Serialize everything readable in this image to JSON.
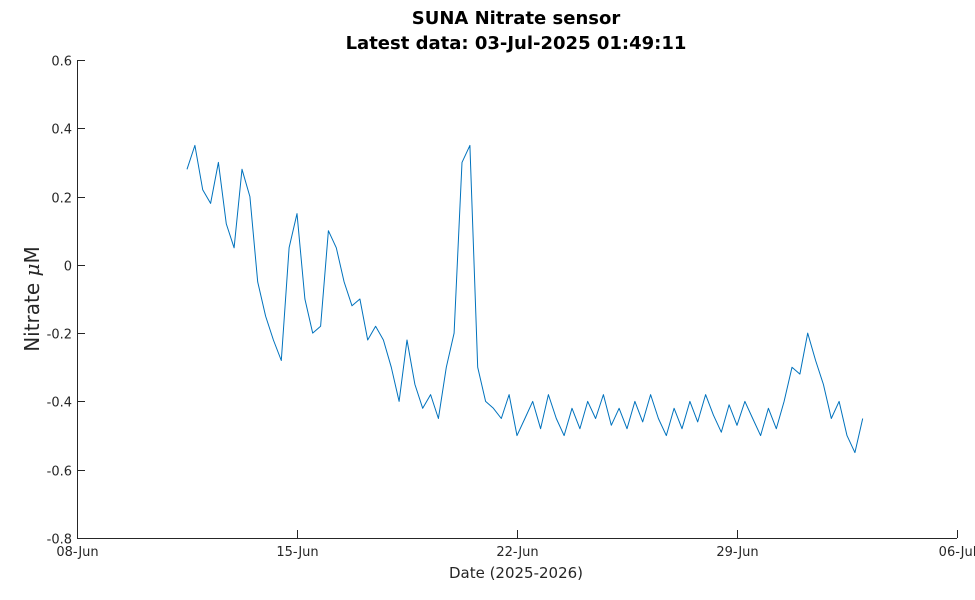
{
  "chart_data": {
    "type": "line",
    "title": "SUNA Nitrate sensor",
    "subtitle": "Latest data: 03-Jul-2025 01:49:11",
    "xlabel": "Date (2025-2026)",
    "ylabel_prefix": "Nitrate ",
    "ylabel_mu": "μ",
    "ylabel_unit": "M",
    "xlim": [
      "2025-06-08",
      "2025-07-06"
    ],
    "ylim": [
      -0.8,
      0.6
    ],
    "x_ticks": [
      {
        "date": "2025-06-08",
        "label": "08-Jun"
      },
      {
        "date": "2025-06-15",
        "label": "15-Jun"
      },
      {
        "date": "2025-06-22",
        "label": "22-Jun"
      },
      {
        "date": "2025-06-29",
        "label": "29-Jun"
      },
      {
        "date": "2025-07-06",
        "label": "06-Jul"
      }
    ],
    "y_ticks": [
      {
        "value": 0.6,
        "label": "0.6"
      },
      {
        "value": 0.4,
        "label": "0.4"
      },
      {
        "value": 0.2,
        "label": "0.2"
      },
      {
        "value": 0,
        "label": "0"
      },
      {
        "value": -0.2,
        "label": "-0.2"
      },
      {
        "value": -0.4,
        "label": "-0.4"
      },
      {
        "value": -0.6,
        "label": "-0.6"
      },
      {
        "value": -0.8,
        "label": "-0.8"
      }
    ],
    "grid": false,
    "legend": "none",
    "series": [
      {
        "color": "#0072BD",
        "x": [
          "2025-06-11 12:00",
          "2025-06-11 18:00",
          "2025-06-12 00:00",
          "2025-06-12 06:00",
          "2025-06-12 12:00",
          "2025-06-12 18:00",
          "2025-06-13 00:00",
          "2025-06-13 06:00",
          "2025-06-13 12:00",
          "2025-06-13 18:00",
          "2025-06-14 00:00",
          "2025-06-14 06:00",
          "2025-06-14 12:00",
          "2025-06-14 18:00",
          "2025-06-15 00:00",
          "2025-06-15 06:00",
          "2025-06-15 12:00",
          "2025-06-15 18:00",
          "2025-06-16 00:00",
          "2025-06-16 06:00",
          "2025-06-16 12:00",
          "2025-06-16 18:00",
          "2025-06-17 00:00",
          "2025-06-17 06:00",
          "2025-06-17 12:00",
          "2025-06-17 18:00",
          "2025-06-18 00:00",
          "2025-06-18 06:00",
          "2025-06-18 12:00",
          "2025-06-18 18:00",
          "2025-06-19 00:00",
          "2025-06-19 06:00",
          "2025-06-19 12:00",
          "2025-06-19 18:00",
          "2025-06-20 00:00",
          "2025-06-20 06:00",
          "2025-06-20 12:00",
          "2025-06-20 18:00",
          "2025-06-21 00:00",
          "2025-06-21 06:00",
          "2025-06-21 12:00",
          "2025-06-21 18:00",
          "2025-06-22 00:00",
          "2025-06-22 06:00",
          "2025-06-22 12:00",
          "2025-06-22 18:00",
          "2025-06-23 00:00",
          "2025-06-23 06:00",
          "2025-06-23 12:00",
          "2025-06-23 18:00",
          "2025-06-24 00:00",
          "2025-06-24 06:00",
          "2025-06-24 12:00",
          "2025-06-24 18:00",
          "2025-06-25 00:00",
          "2025-06-25 06:00",
          "2025-06-25 12:00",
          "2025-06-25 18:00",
          "2025-06-26 00:00",
          "2025-06-26 06:00",
          "2025-06-26 12:00",
          "2025-06-26 18:00",
          "2025-06-27 00:00",
          "2025-06-27 06:00",
          "2025-06-27 12:00",
          "2025-06-27 18:00",
          "2025-06-28 00:00",
          "2025-06-28 06:00",
          "2025-06-28 12:00",
          "2025-06-28 18:00",
          "2025-06-29 00:00",
          "2025-06-29 06:00",
          "2025-06-29 12:00",
          "2025-06-29 18:00",
          "2025-06-30 00:00",
          "2025-06-30 06:00",
          "2025-06-30 12:00",
          "2025-06-30 18:00",
          "2025-07-01 00:00",
          "2025-07-01 06:00",
          "2025-07-01 12:00",
          "2025-07-01 18:00",
          "2025-07-02 00:00",
          "2025-07-02 06:00",
          "2025-07-02 12:00",
          "2025-07-02 18:00",
          "2025-07-03 00:00"
        ],
        "y": [
          0.28,
          0.35,
          0.22,
          0.18,
          0.3,
          0.12,
          0.05,
          0.28,
          0.2,
          -0.05,
          -0.15,
          -0.22,
          -0.28,
          0.05,
          0.15,
          -0.1,
          -0.2,
          -0.18,
          0.1,
          0.05,
          -0.05,
          -0.12,
          -0.1,
          -0.22,
          -0.18,
          -0.22,
          -0.3,
          -0.4,
          -0.22,
          -0.35,
          -0.42,
          -0.38,
          -0.45,
          -0.3,
          -0.2,
          0.3,
          0.35,
          -0.3,
          -0.4,
          -0.42,
          -0.45,
          -0.38,
          -0.5,
          -0.45,
          -0.4,
          -0.48,
          -0.38,
          -0.45,
          -0.5,
          -0.42,
          -0.48,
          -0.4,
          -0.45,
          -0.38,
          -0.47,
          -0.42,
          -0.48,
          -0.4,
          -0.46,
          -0.38,
          -0.45,
          -0.5,
          -0.42,
          -0.48,
          -0.4,
          -0.46,
          -0.38,
          -0.44,
          -0.49,
          -0.41,
          -0.47,
          -0.4,
          -0.45,
          -0.5,
          -0.42,
          -0.48,
          -0.4,
          -0.3,
          -0.32,
          -0.2,
          -0.28,
          -0.35,
          -0.45,
          -0.4,
          -0.5,
          -0.55,
          -0.45
        ]
      }
    ]
  }
}
